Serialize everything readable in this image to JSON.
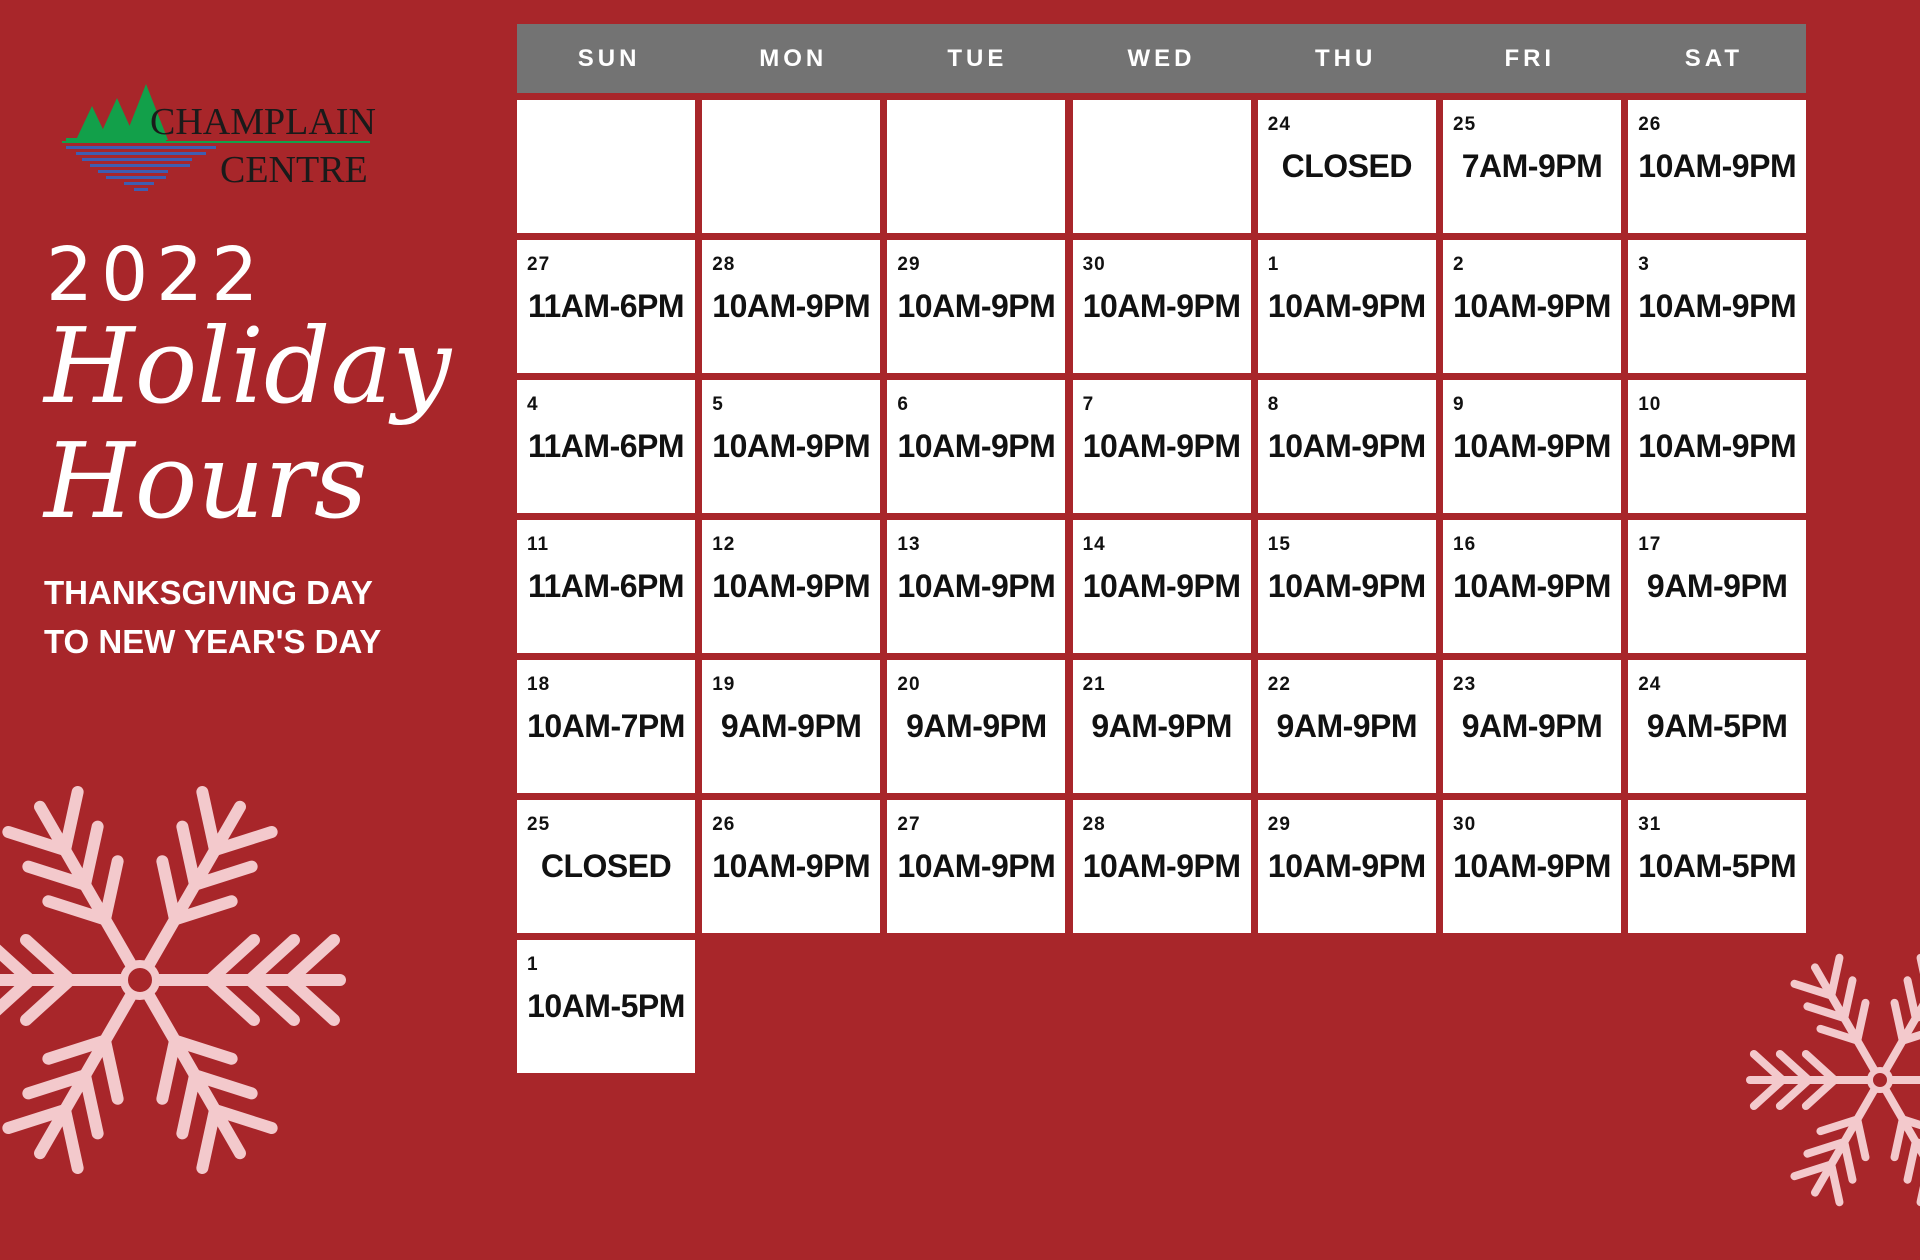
{
  "logo": {
    "line1": "CHAMPLAIN",
    "line2": "CENTRE"
  },
  "title": {
    "year": "2022",
    "line1": "Holiday",
    "line2": "Hours"
  },
  "subtitle": {
    "line1": "THANKSGIVING DAY",
    "line2": "TO NEW YEAR'S DAY"
  },
  "colors": {
    "background": "#a8262a",
    "header": "#737373",
    "cell": "#ffffff",
    "snowflake": "#f3c9cc"
  },
  "weekdays": [
    "SUN",
    "MON",
    "TUE",
    "WED",
    "THU",
    "FRI",
    "SAT"
  ],
  "weeks": [
    [
      null,
      null,
      null,
      null,
      {
        "day": "24",
        "hours": "CLOSED"
      },
      {
        "day": "25",
        "hours": "7AM-9PM"
      },
      {
        "day": "26",
        "hours": "10AM-9PM"
      }
    ],
    [
      {
        "day": "27",
        "hours": "11AM-6PM"
      },
      {
        "day": "28",
        "hours": "10AM-9PM"
      },
      {
        "day": "29",
        "hours": "10AM-9PM"
      },
      {
        "day": "30",
        "hours": "10AM-9PM"
      },
      {
        "day": "1",
        "hours": "10AM-9PM"
      },
      {
        "day": "2",
        "hours": "10AM-9PM"
      },
      {
        "day": "3",
        "hours": "10AM-9PM"
      }
    ],
    [
      {
        "day": "4",
        "hours": "11AM-6PM"
      },
      {
        "day": "5",
        "hours": "10AM-9PM"
      },
      {
        "day": "6",
        "hours": "10AM-9PM"
      },
      {
        "day": "7",
        "hours": "10AM-9PM"
      },
      {
        "day": "8",
        "hours": "10AM-9PM"
      },
      {
        "day": "9",
        "hours": "10AM-9PM"
      },
      {
        "day": "10",
        "hours": "10AM-9PM"
      }
    ],
    [
      {
        "day": "11",
        "hours": "11AM-6PM"
      },
      {
        "day": "12",
        "hours": "10AM-9PM"
      },
      {
        "day": "13",
        "hours": "10AM-9PM"
      },
      {
        "day": "14",
        "hours": "10AM-9PM"
      },
      {
        "day": "15",
        "hours": "10AM-9PM"
      },
      {
        "day": "16",
        "hours": "10AM-9PM"
      },
      {
        "day": "17",
        "hours": "9AM-9PM"
      }
    ],
    [
      {
        "day": "18",
        "hours": "10AM-7PM"
      },
      {
        "day": "19",
        "hours": "9AM-9PM"
      },
      {
        "day": "20",
        "hours": "9AM-9PM"
      },
      {
        "day": "21",
        "hours": "9AM-9PM"
      },
      {
        "day": "22",
        "hours": "9AM-9PM"
      },
      {
        "day": "23",
        "hours": "9AM-9PM"
      },
      {
        "day": "24",
        "hours": "9AM-5PM"
      }
    ],
    [
      {
        "day": "25",
        "hours": "CLOSED"
      },
      {
        "day": "26",
        "hours": "10AM-9PM"
      },
      {
        "day": "27",
        "hours": "10AM-9PM"
      },
      {
        "day": "28",
        "hours": "10AM-9PM"
      },
      {
        "day": "29",
        "hours": "10AM-9PM"
      },
      {
        "day": "30",
        "hours": "10AM-9PM"
      },
      {
        "day": "31",
        "hours": "10AM-5PM"
      }
    ],
    [
      {
        "day": "1",
        "hours": "10AM-5PM"
      }
    ]
  ]
}
